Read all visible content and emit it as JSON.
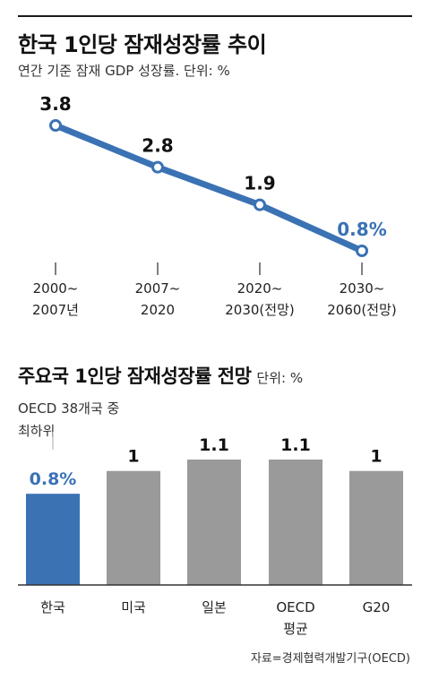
{
  "header": {
    "title": "한국 1인당 잠재성장률 추이",
    "subtitle": "연간 기준 잠재 GDP 성장률. 단위: %"
  },
  "second": {
    "title": "주요국 1인당 잠재성장률 전망",
    "unit": "단위: %",
    "note_line1": "OECD 38개국 중",
    "note_line2": "최하위"
  },
  "source": "자료=경제협력개발기구(OECD)",
  "colors": {
    "accent": "#3a72b4",
    "line": "#3a72b4",
    "bar": "#9a9a9a",
    "axis": "#555555",
    "text": "#222222"
  },
  "chart_data": [
    {
      "type": "line",
      "title": "한국 1인당 잠재성장률 추이",
      "subtitle": "연간 기준 잠재 GDP 성장률. 단위: %",
      "categories": [
        [
          "2000~",
          "2007년"
        ],
        [
          "2007~",
          "2020"
        ],
        [
          "2020~",
          "2030(전망)"
        ],
        [
          "2030~",
          "2060(전망)"
        ]
      ],
      "values": [
        3.8,
        2.8,
        1.9,
        0.8
      ],
      "labels": [
        "3.8",
        "2.8",
        "1.9",
        "0.8%"
      ],
      "highlight_index": 3,
      "ylim": [
        0.8,
        3.8
      ],
      "grid": false
    },
    {
      "type": "bar",
      "title": "주요국 1인당 잠재성장률 전망",
      "categories": [
        [
          "한국"
        ],
        [
          "미국"
        ],
        [
          "일본"
        ],
        [
          "OECD",
          "평균"
        ],
        [
          "G20"
        ]
      ],
      "values": [
        0.8,
        1,
        1.1,
        1.1,
        1
      ],
      "labels": [
        "0.8%",
        "1",
        "1.1",
        "1.1",
        "1"
      ],
      "highlight_index": 0,
      "ylim": [
        0,
        1.1
      ],
      "grid": false
    }
  ]
}
